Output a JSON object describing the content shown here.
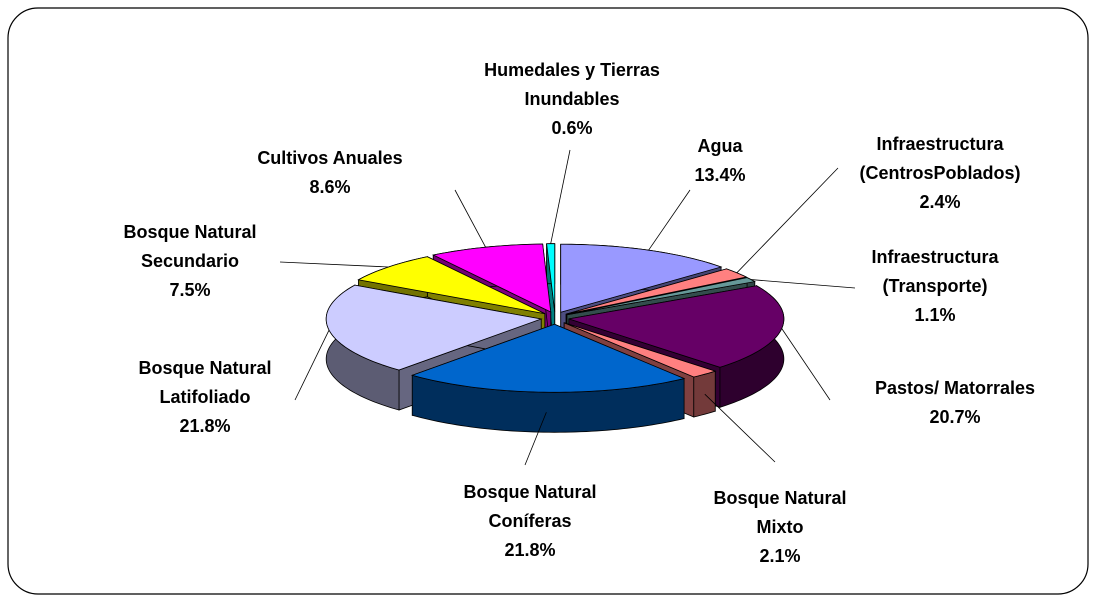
{
  "chart_data": {
    "type": "pie3d",
    "categories": [
      "Agua",
      "Infraestructura (CentrosPoblados)",
      "Infraestructura (Transporte)",
      "Pastos/ Matorrales",
      "Bosque Natural Mixto",
      "Bosque Natural Coníferas",
      "Bosque Natural Latifoliado",
      "Bosque Natural Secundario",
      "Cultivos Anuales",
      "Humedales y Tierras Inundables"
    ],
    "values": [
      13.4,
      2.4,
      1.1,
      20.7,
      2.1,
      21.8,
      21.8,
      7.5,
      8.6,
      0.6
    ],
    "value_labels": [
      "13.4%",
      "2.4%",
      "1.1%",
      "20.7%",
      "2.1%",
      "21.8%",
      "21.8%",
      "7.5%",
      "8.6%",
      "0.6%"
    ],
    "colors": [
      "#9999ff",
      "#ff8080",
      "#669999",
      "#660066",
      "#ff8080",
      "#0066cc",
      "#ccccff",
      "#ffff00",
      "#ff00ff",
      "#00ffff"
    ]
  }
}
